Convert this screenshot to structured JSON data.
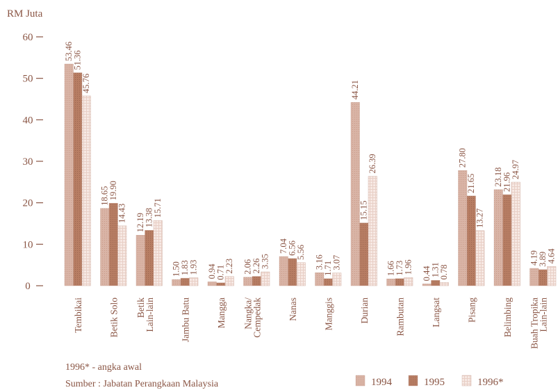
{
  "chart_data": {
    "type": "bar",
    "ylabel": "RM Juta",
    "ylim": [
      0,
      60
    ],
    "yticks": [
      0,
      10,
      20,
      30,
      40,
      50,
      60
    ],
    "categories": [
      "Tembikai",
      "Betik Solo",
      "Betik Lain-lain",
      "Jambu Batu",
      "Mangga",
      "Nangka/ Cempedak",
      "Nanas",
      "Manggis",
      "Durian",
      "Rambutan",
      "Langsat",
      "Pisang",
      "Belimbing",
      "Buah Tropika Lain-lain"
    ],
    "series": [
      {
        "name": "1994",
        "color": "#d9b4a6",
        "values": [
          53.46,
          18.65,
          12.19,
          1.5,
          0.94,
          2.06,
          7.04,
          3.16,
          44.21,
          1.66,
          0.44,
          27.8,
          23.18,
          4.19
        ]
      },
      {
        "name": "1995",
        "color": "#b77d63",
        "values": [
          51.36,
          19.9,
          13.38,
          1.83,
          0.71,
          2.26,
          6.56,
          1.71,
          15.15,
          1.73,
          1.31,
          21.65,
          21.96,
          3.89
        ]
      },
      {
        "name": "1996*",
        "color": "#f3e0da",
        "values": [
          45.76,
          14.43,
          15.71,
          1.93,
          2.23,
          3.35,
          5.56,
          3.07,
          26.39,
          1.96,
          0.78,
          13.27,
          24.97,
          4.64
        ]
      }
    ],
    "value_labels": [
      [
        "53.46",
        "51.36",
        "45.76"
      ],
      [
        "18.65",
        "19.90",
        "14.43"
      ],
      [
        "12.19",
        "13.38",
        "15.71"
      ],
      [
        "1.50",
        "1.83",
        "1.93"
      ],
      [
        "0.94",
        "0.71",
        "2.23"
      ],
      [
        "2.06",
        "2.26",
        "3.35"
      ],
      [
        "7.04",
        "6.56",
        "5.56"
      ],
      [
        "3.16",
        "1.71",
        "3.07"
      ],
      [
        "44.21",
        "15.15",
        "26.39"
      ],
      [
        "1.66",
        "1.73",
        "1.96"
      ],
      [
        "0.44",
        "1.31",
        "0.78"
      ],
      [
        "27.80",
        "21.65",
        "13.27"
      ],
      [
        "23.18",
        "21.96",
        "24.97"
      ],
      [
        "4.19",
        "3.89",
        "4.64"
      ]
    ],
    "legend_position": "bottom-right",
    "grid": false
  },
  "footnote": "1996* - angka awal",
  "source": "Sumber : Jabatan Perangkaan Malaysia"
}
